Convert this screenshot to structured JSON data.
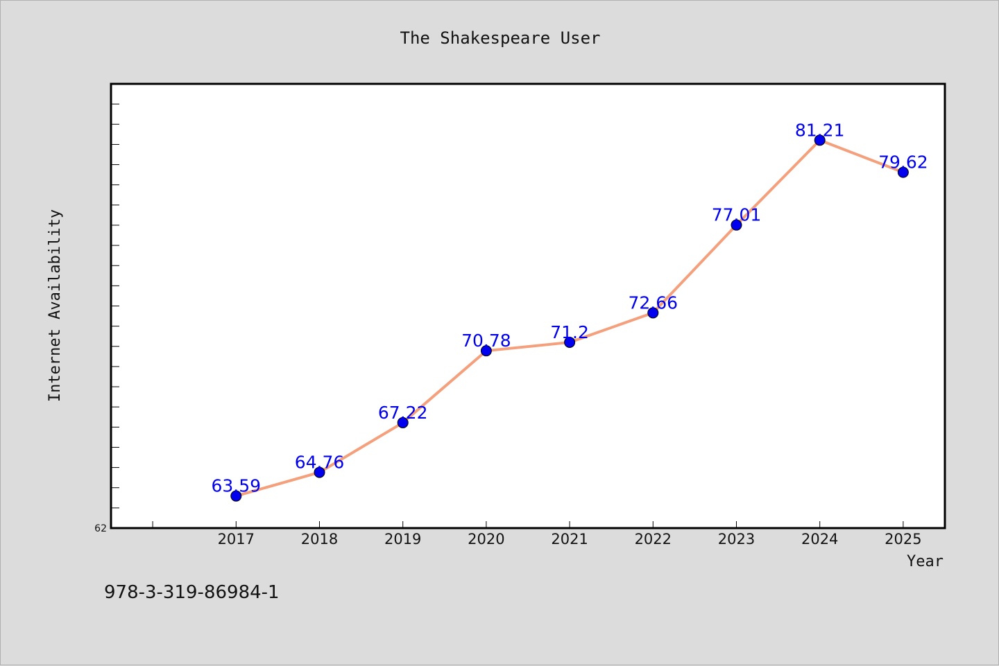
{
  "chart_data": {
    "type": "line",
    "title": "The Shakespeare User",
    "xlabel": "Year",
    "ylabel": "Internet Availability",
    "x": [
      "2017",
      "2018",
      "2019",
      "2020",
      "2021",
      "2022",
      "2023",
      "2024",
      "2025"
    ],
    "series": [
      {
        "values": [
          63.59,
          64.76,
          67.22,
          70.78,
          71.2,
          72.66,
          77.01,
          81.21,
          79.62
        ]
      }
    ],
    "data_labels": [
      "63.59",
      "64.76",
      "67.22",
      "70.78",
      "71.2",
      "72.66",
      "77.01",
      "81.21",
      "79.62"
    ],
    "ytick_labels": [
      "62"
    ],
    "ylim": [
      62,
      84
    ],
    "xlim": [
      2015.5,
      2025.5
    ],
    "grid": false,
    "colors": {
      "line": "#f4a07c",
      "marker": "#0000ee",
      "label": "#0000ee"
    }
  },
  "footer": {
    "text": "978-3-319-86984-1"
  }
}
